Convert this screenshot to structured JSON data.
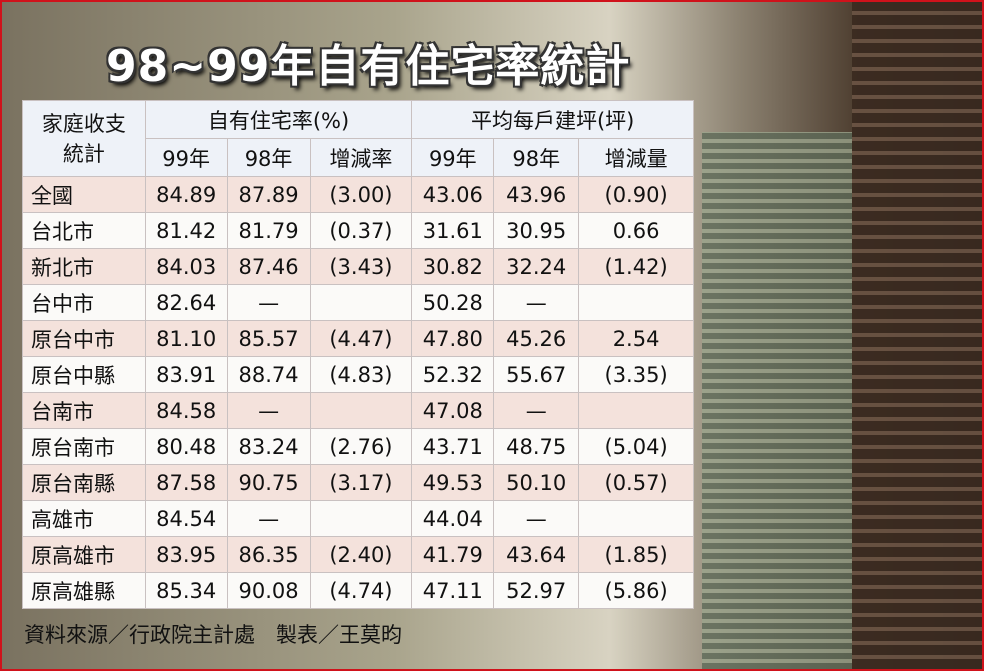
{
  "title": "98~99年自有住宅率統計",
  "table": {
    "corner": "家庭收支統計",
    "groups": [
      "自有住宅率(%)",
      "平均每戶建坪(坪)"
    ],
    "subheaders": [
      "99年",
      "98年",
      "增減率",
      "99年",
      "98年",
      "增減量"
    ],
    "rows": [
      [
        "全國",
        "84.89",
        "87.89",
        "(3.00)",
        "43.06",
        "43.96",
        "(0.90)"
      ],
      [
        "台北市",
        "81.42",
        "81.79",
        "(0.37)",
        "31.61",
        "30.95",
        "0.66"
      ],
      [
        "新北市",
        "84.03",
        "87.46",
        "(3.43)",
        "30.82",
        "32.24",
        "(1.42)"
      ],
      [
        "台中市",
        "82.64",
        "—",
        null,
        "50.28",
        "—",
        null
      ],
      [
        "原台中市",
        "81.10",
        "85.57",
        "(4.47)",
        "47.80",
        "45.26",
        "2.54"
      ],
      [
        "原台中縣",
        "83.91",
        "88.74",
        "(4.83)",
        "52.32",
        "55.67",
        "(3.35)"
      ],
      [
        "台南市",
        "84.58",
        "—",
        null,
        "47.08",
        "—",
        null
      ],
      [
        "原台南市",
        "80.48",
        "83.24",
        "(2.76)",
        "43.71",
        "48.75",
        "(5.04)"
      ],
      [
        "原台南縣",
        "87.58",
        "90.75",
        "(3.17)",
        "49.53",
        "50.10",
        "(0.57)"
      ],
      [
        "高雄市",
        "84.54",
        "—",
        null,
        "44.04",
        "—",
        null
      ],
      [
        "原高雄市",
        "83.95",
        "86.35",
        "(2.40)",
        "41.79",
        "43.64",
        "(1.85)"
      ],
      [
        "原高雄縣",
        "85.34",
        "90.08",
        "(4.74)",
        "47.11",
        "52.97",
        "(5.86)"
      ]
    ]
  },
  "source": "資料來源／行政院主計處　製表／王莫昀"
}
